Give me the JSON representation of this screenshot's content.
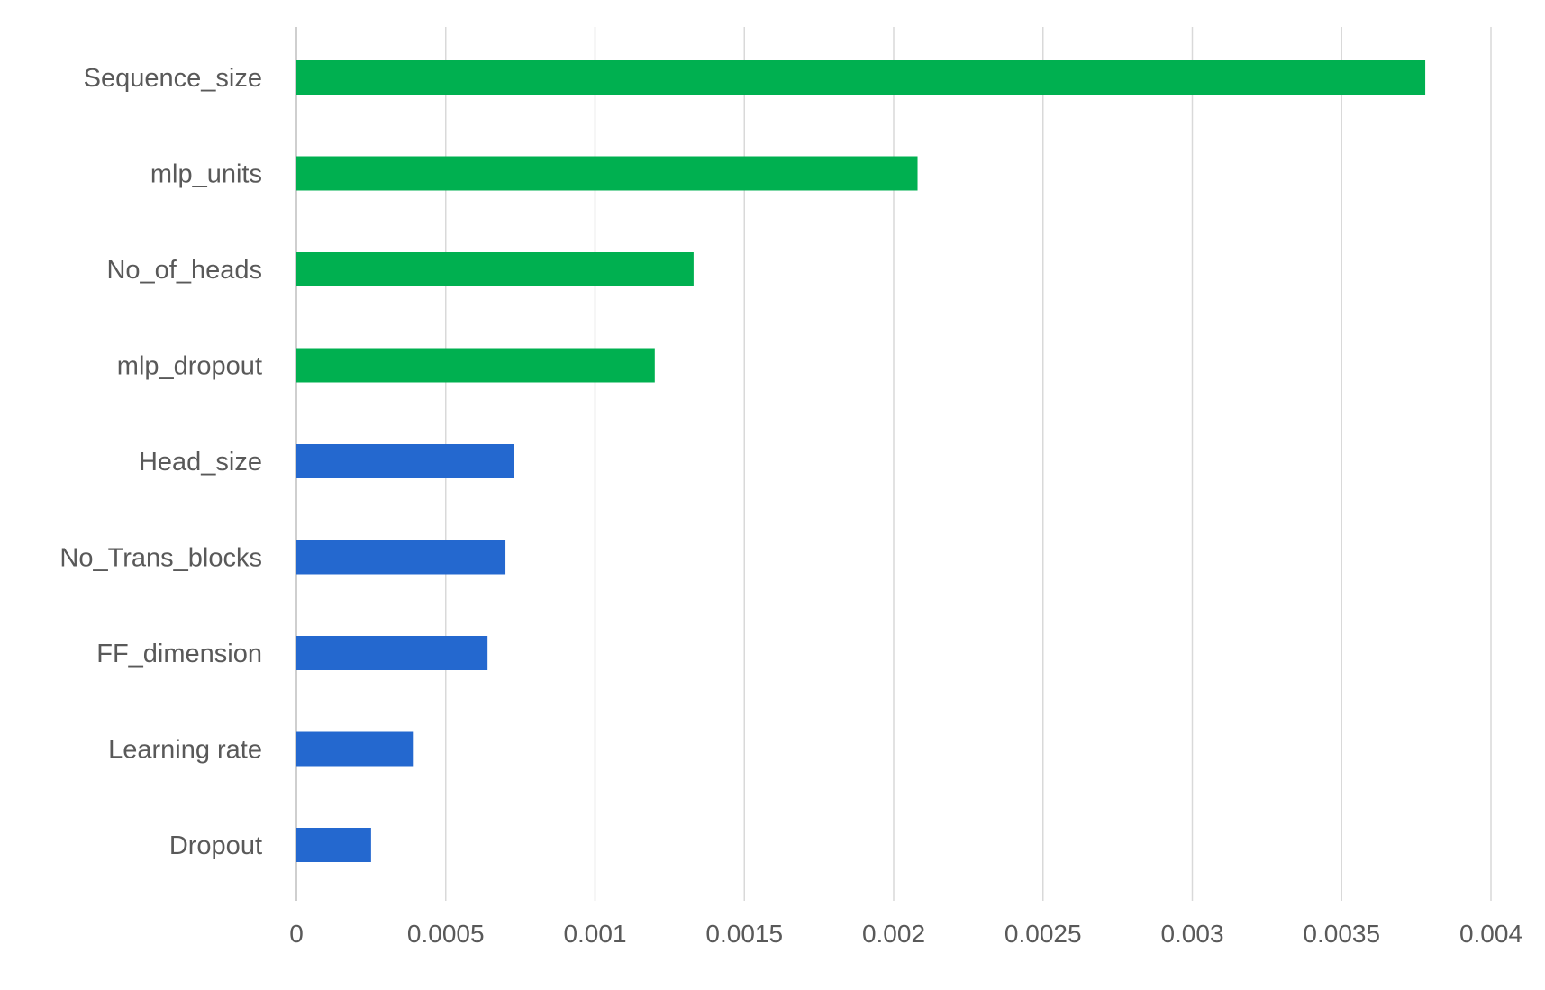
{
  "chart_data": {
    "type": "bar",
    "orientation": "horizontal",
    "categories": [
      "Sequence_size",
      "mlp_units",
      "No_of_heads",
      "mlp_dropout",
      "Head_size",
      "No_Trans_blocks",
      "FF_dimension",
      "Learning rate",
      "Dropout"
    ],
    "values": [
      0.00378,
      0.00208,
      0.00133,
      0.0012,
      0.00073,
      0.0007,
      0.00064,
      0.00039,
      0.00025
    ],
    "bar_colors": [
      "#00b050",
      "#00b050",
      "#00b050",
      "#00b050",
      "#2468cf",
      "#2468cf",
      "#2468cf",
      "#2468cf",
      "#2468cf"
    ],
    "xlim": [
      0,
      0.004
    ],
    "xticks": [
      "0",
      "0.0005",
      "0.001",
      "0.0015",
      "0.002",
      "0.0025",
      "0.003",
      "0.0035",
      "0.004"
    ],
    "title": "",
    "xlabel": "",
    "ylabel": "",
    "grid": "vertical",
    "legend": "none"
  }
}
